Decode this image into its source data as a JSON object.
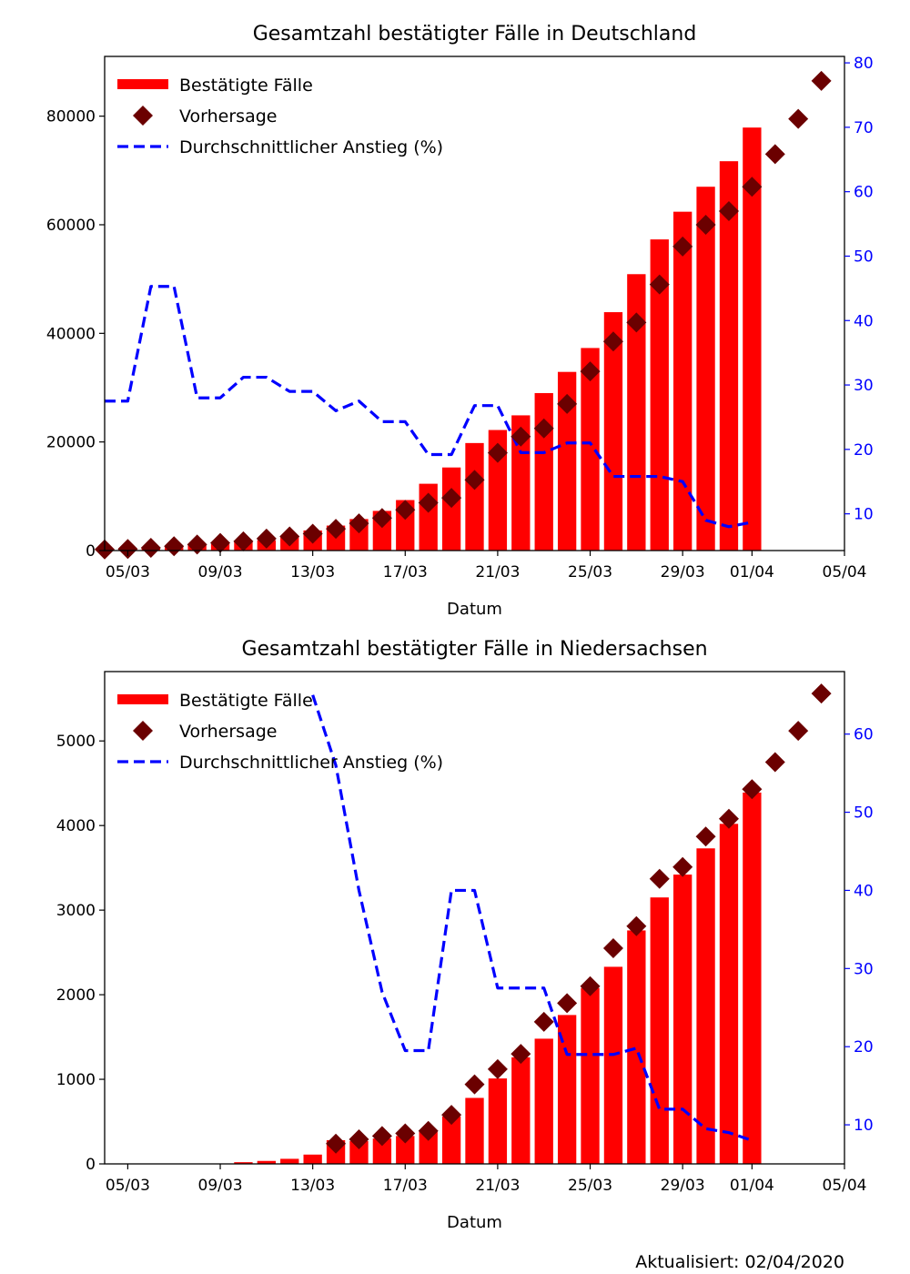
{
  "chart_data": [
    {
      "type": "bar",
      "title": "Gesamtzahl bestätigter Fälle in Deutschland",
      "xlabel": "Datum",
      "ylabel": "",
      "y2label": "",
      "x_ticks": [
        "05/03",
        "09/03",
        "13/03",
        "17/03",
        "21/03",
        "25/03",
        "29/03",
        "01/04",
        "05/04"
      ],
      "ylim": [
        0,
        91000
      ],
      "y_ticks": [
        0,
        20000,
        40000,
        60000,
        80000
      ],
      "y2lim": [
        4.3,
        81
      ],
      "y2_ticks": [
        10,
        20,
        30,
        40,
        50,
        60,
        70,
        80
      ],
      "legend_position": "top-left",
      "legend": [
        "Bestätigte Fälle",
        "Vorhersage",
        "Durchschnittlicher Anstieg (%)"
      ],
      "bars": {
        "name": "Bestätigte Fälle",
        "color": "#ff0000",
        "x": [
          "04/03",
          "05/03",
          "06/03",
          "07/03",
          "08/03",
          "09/03",
          "10/03",
          "11/03",
          "12/03",
          "13/03",
          "14/03",
          "15/03",
          "16/03",
          "17/03",
          "18/03",
          "19/03",
          "20/03",
          "21/03",
          "22/03",
          "23/03",
          "24/03",
          "25/03",
          "26/03",
          "27/03",
          "28/03",
          "29/03",
          "30/03",
          "31/03",
          "01/04"
        ],
        "values": [
          260,
          400,
          670,
          800,
          1040,
          1180,
          1600,
          1900,
          2500,
          3700,
          4600,
          5800,
          7300,
          9300,
          12300,
          15300,
          19800,
          22200,
          24900,
          29000,
          32900,
          37300,
          43900,
          50900,
          57300,
          62400,
          67000,
          71700,
          77900
        ]
      },
      "forecast": {
        "name": "Vorhersage",
        "color": "#6b0000",
        "x": [
          "04/03",
          "05/03",
          "06/03",
          "07/03",
          "08/03",
          "09/03",
          "10/03",
          "11/03",
          "12/03",
          "13/03",
          "14/03",
          "15/03",
          "16/03",
          "17/03",
          "18/03",
          "19/03",
          "20/03",
          "21/03",
          "22/03",
          "23/03",
          "24/03",
          "25/03",
          "26/03",
          "27/03",
          "28/03",
          "29/03",
          "30/03",
          "31/03",
          "01/04",
          "02/04",
          "03/04",
          "04/04"
        ],
        "values": [
          200,
          300,
          500,
          800,
          1100,
          1400,
          1700,
          2200,
          2600,
          3100,
          4000,
          5000,
          6000,
          7500,
          8800,
          9700,
          13000,
          18000,
          21000,
          22500,
          27000,
          33000,
          38500,
          42000,
          49000,
          56000,
          60000,
          62500,
          67000,
          73000,
          79500,
          86500
        ]
      },
      "growth": {
        "name": "Durchschnittlicher Anstieg (%)",
        "color": "#0000ff",
        "x": [
          "04/03",
          "05/03",
          "06/03",
          "07/03",
          "08/03",
          "09/03",
          "10/03",
          "11/03",
          "12/03",
          "13/03",
          "14/03",
          "15/03",
          "16/03",
          "17/03",
          "18/03",
          "19/03",
          "20/03",
          "21/03",
          "22/03",
          "23/03",
          "24/03",
          "25/03",
          "26/03",
          "27/03",
          "28/03",
          "29/03",
          "30/03",
          "31/03",
          "01/04"
        ],
        "values": [
          27.5,
          27.5,
          45.3,
          45.3,
          28,
          28,
          31.2,
          31.2,
          29,
          29,
          26,
          27.5,
          24.3,
          24.3,
          19.2,
          19.2,
          26.8,
          26.8,
          19.5,
          19.5,
          21,
          21,
          15.8,
          15.8,
          15.8,
          15,
          9,
          8,
          8.7
        ]
      }
    },
    {
      "type": "bar",
      "title": "Gesamtzahl bestätigter Fälle in Niedersachsen",
      "xlabel": "Datum",
      "ylabel": "",
      "y2label": "",
      "x_ticks": [
        "05/03",
        "09/03",
        "13/03",
        "17/03",
        "21/03",
        "25/03",
        "29/03",
        "01/04",
        "05/04"
      ],
      "ylim": [
        0,
        5820
      ],
      "y_ticks": [
        0,
        1000,
        2000,
        3000,
        4000,
        5000
      ],
      "y2lim": [
        5,
        68
      ],
      "y2_ticks": [
        10,
        20,
        30,
        40,
        50,
        60
      ],
      "legend_position": "top-left",
      "legend": [
        "Bestätigte Fälle",
        "Vorhersage",
        "Durchschnittlicher Anstieg (%)"
      ],
      "bars": {
        "name": "Bestätigte Fälle",
        "color": "#ff0000",
        "x": [
          "04/03",
          "05/03",
          "06/03",
          "07/03",
          "08/03",
          "09/03",
          "10/03",
          "11/03",
          "12/03",
          "13/03",
          "14/03",
          "15/03",
          "16/03",
          "17/03",
          "18/03",
          "19/03",
          "20/03",
          "21/03",
          "22/03",
          "23/03",
          "24/03",
          "25/03",
          "26/03",
          "27/03",
          "28/03",
          "29/03",
          "30/03",
          "31/03",
          "01/04"
        ],
        "values": [
          0,
          0,
          0,
          0,
          0,
          0,
          20,
          35,
          60,
          110,
          280,
          270,
          300,
          330,
          380,
          560,
          780,
          1010,
          1260,
          1480,
          1760,
          2080,
          2330,
          2760,
          3150,
          3420,
          3730,
          4020,
          4390
        ]
      },
      "forecast": {
        "name": "Vorhersage",
        "color": "#6b0000",
        "x": [
          "14/03",
          "15/03",
          "16/03",
          "17/03",
          "18/03",
          "19/03",
          "20/03",
          "21/03",
          "22/03",
          "23/03",
          "24/03",
          "25/03",
          "26/03",
          "27/03",
          "28/03",
          "29/03",
          "30/03",
          "31/03",
          "01/04",
          "02/04",
          "03/04",
          "04/04"
        ],
        "values": [
          240,
          290,
          330,
          360,
          390,
          580,
          940,
          1120,
          1300,
          1680,
          1900,
          2100,
          2550,
          2810,
          3370,
          3510,
          3870,
          4080,
          4430,
          4750,
          5120,
          5560
        ]
      },
      "growth": {
        "name": "Durchschnittlicher Anstieg (%)",
        "color": "#0000ff",
        "x": [
          "13/03",
          "14/03",
          "15/03",
          "16/03",
          "17/03",
          "18/03",
          "19/03",
          "20/03",
          "21/03",
          "22/03",
          "23/03",
          "24/03",
          "25/03",
          "26/03",
          "27/03",
          "28/03",
          "29/03",
          "30/03",
          "31/03",
          "01/04"
        ],
        "values": [
          65,
          56,
          40,
          27,
          19.5,
          19.5,
          40,
          40,
          27.5,
          27.5,
          27.5,
          19,
          19,
          19,
          19.8,
          12,
          12,
          9.5,
          9,
          8
        ]
      }
    }
  ],
  "footer": {
    "updated": "Aktualisiert: 02/04/2020"
  }
}
